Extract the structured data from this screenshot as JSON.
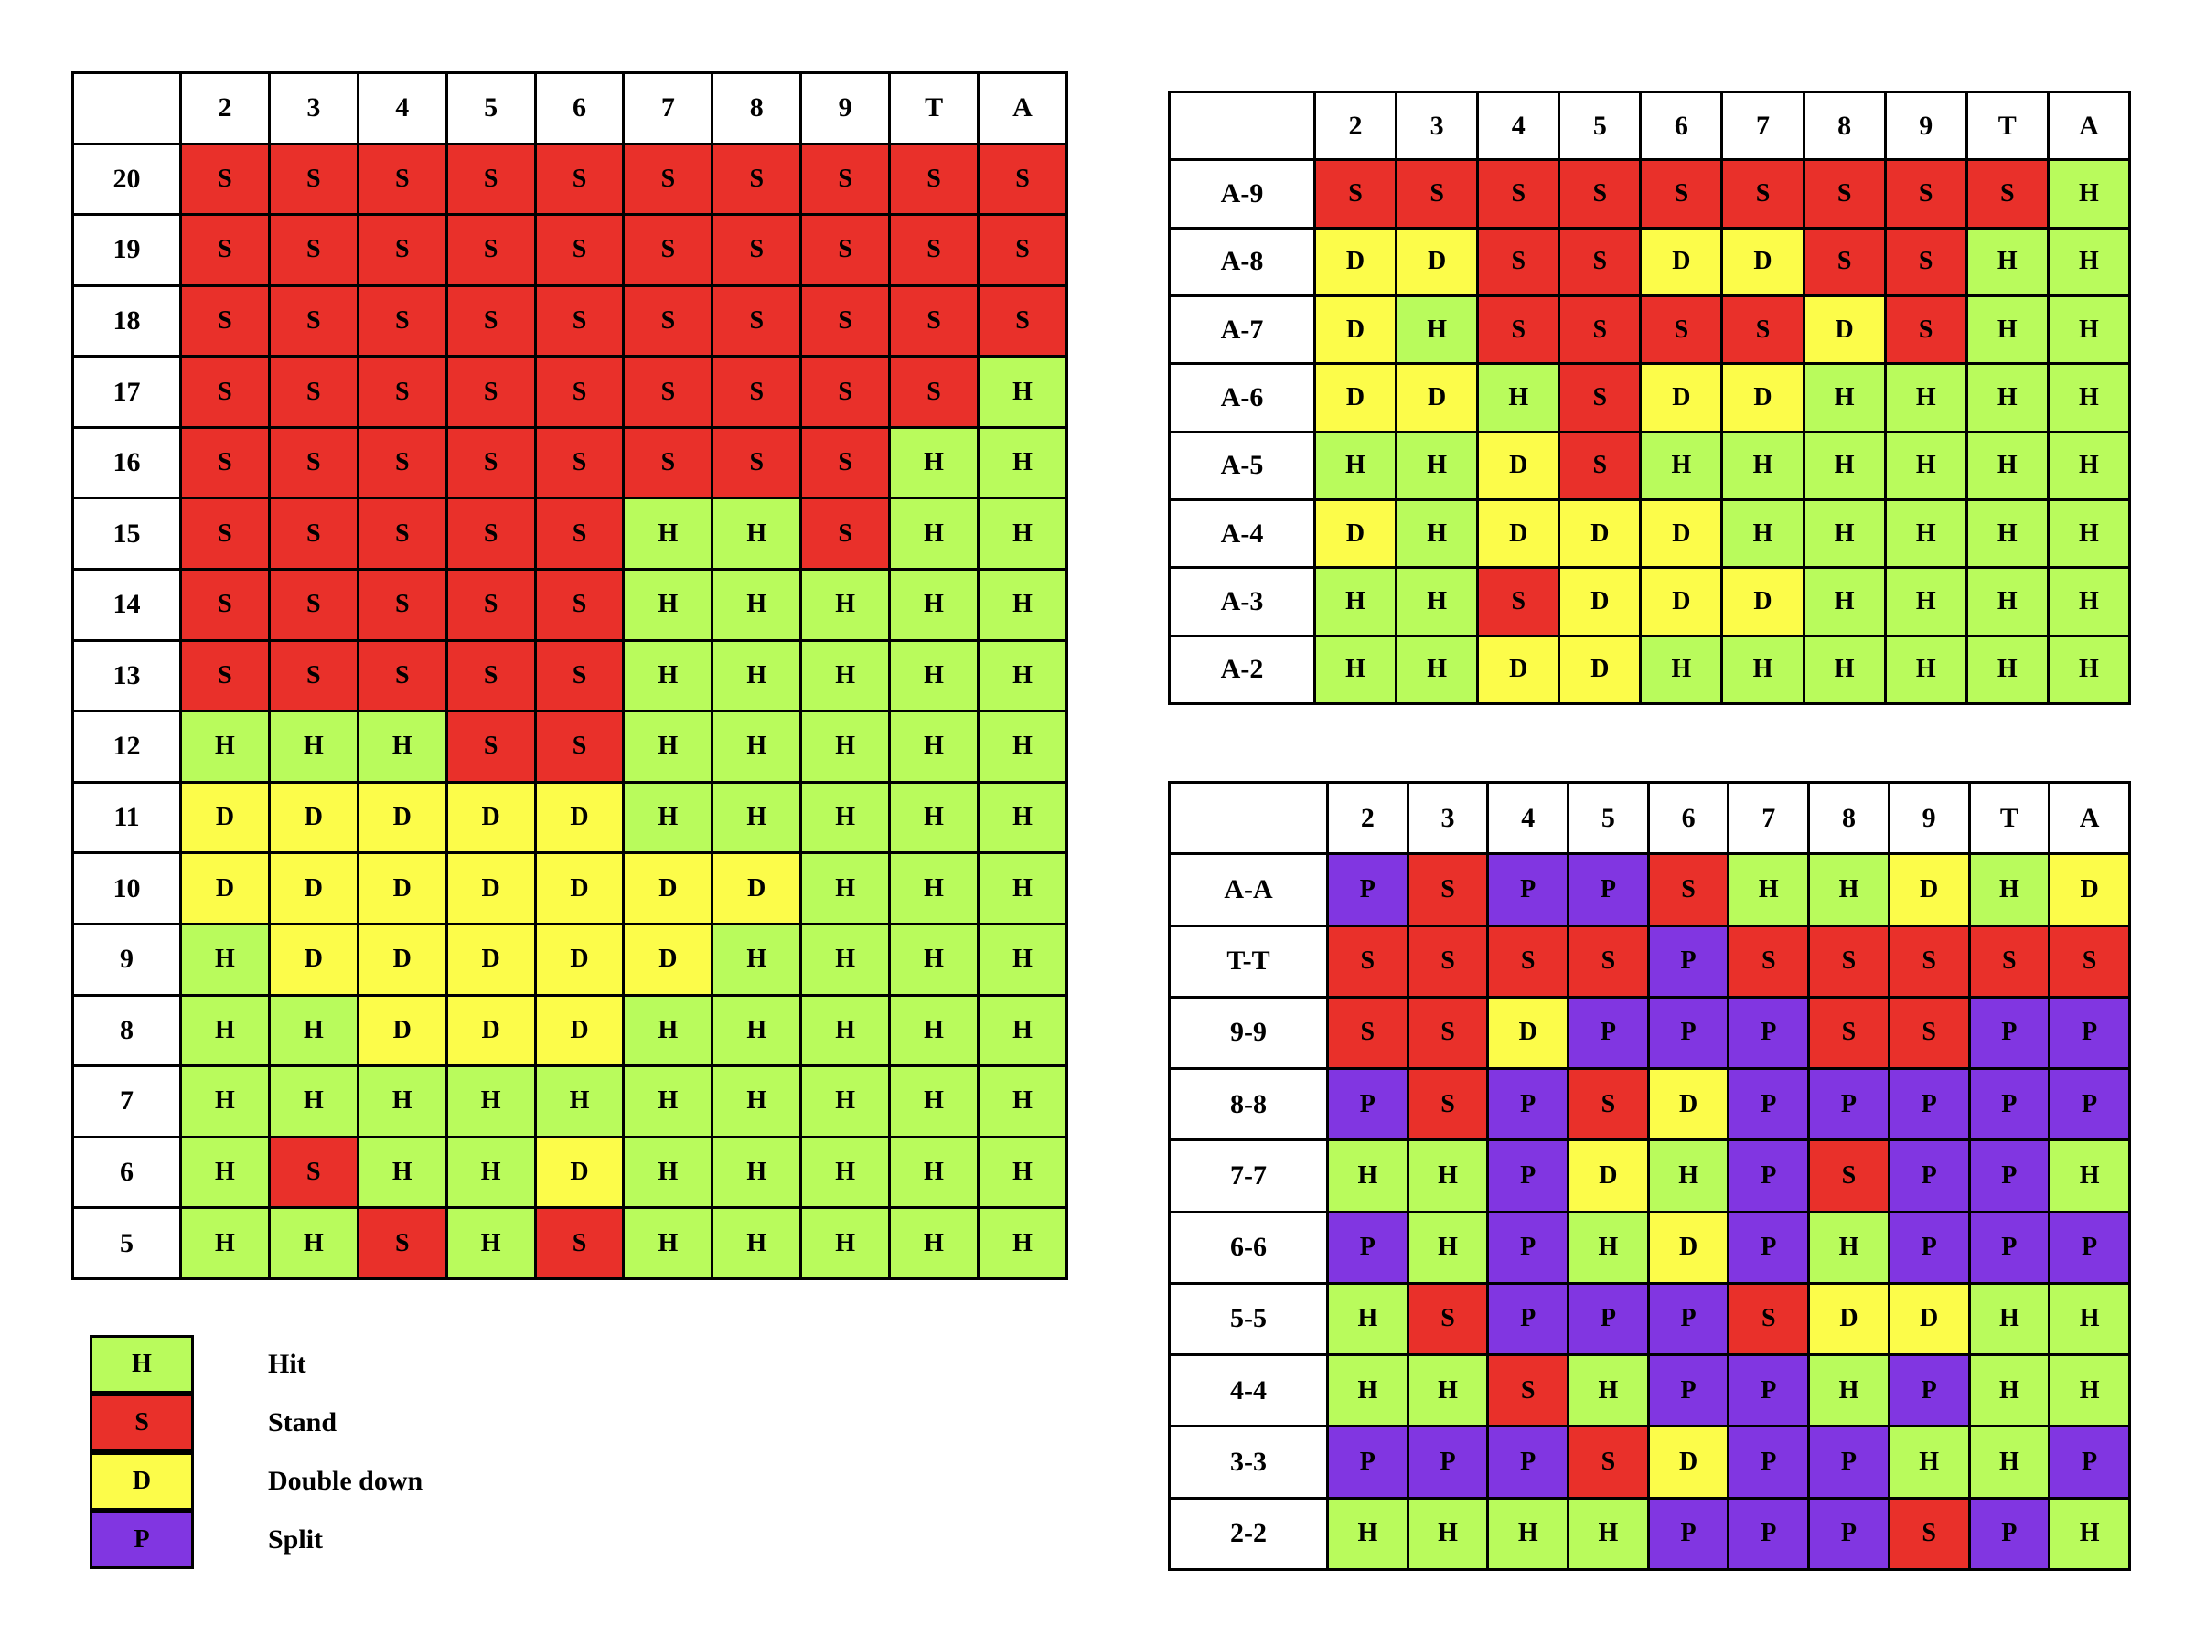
{
  "colors": {
    "H": "#b9fb5c",
    "S": "#e9302a",
    "D": "#fcfc4a",
    "P": "#8136e1"
  },
  "hard_table": {
    "columns": [
      "2",
      "3",
      "4",
      "5",
      "6",
      "7",
      "8",
      "9",
      "T",
      "A"
    ],
    "rows": [
      {
        "label": "20",
        "cells": [
          "S",
          "S",
          "S",
          "S",
          "S",
          "S",
          "S",
          "S",
          "S",
          "S"
        ]
      },
      {
        "label": "19",
        "cells": [
          "S",
          "S",
          "S",
          "S",
          "S",
          "S",
          "S",
          "S",
          "S",
          "S"
        ]
      },
      {
        "label": "18",
        "cells": [
          "S",
          "S",
          "S",
          "S",
          "S",
          "S",
          "S",
          "S",
          "S",
          "S"
        ]
      },
      {
        "label": "17",
        "cells": [
          "S",
          "S",
          "S",
          "S",
          "S",
          "S",
          "S",
          "S",
          "S",
          "H"
        ]
      },
      {
        "label": "16",
        "cells": [
          "S",
          "S",
          "S",
          "S",
          "S",
          "S",
          "S",
          "S",
          "H",
          "H"
        ]
      },
      {
        "label": "15",
        "cells": [
          "S",
          "S",
          "S",
          "S",
          "S",
          "H",
          "H",
          "S",
          "H",
          "H"
        ]
      },
      {
        "label": "14",
        "cells": [
          "S",
          "S",
          "S",
          "S",
          "S",
          "H",
          "H",
          "H",
          "H",
          "H"
        ]
      },
      {
        "label": "13",
        "cells": [
          "S",
          "S",
          "S",
          "S",
          "S",
          "H",
          "H",
          "H",
          "H",
          "H"
        ]
      },
      {
        "label": "12",
        "cells": [
          "H",
          "H",
          "H",
          "S",
          "S",
          "H",
          "H",
          "H",
          "H",
          "H"
        ]
      },
      {
        "label": "11",
        "cells": [
          "D",
          "D",
          "D",
          "D",
          "D",
          "H",
          "H",
          "H",
          "H",
          "H"
        ]
      },
      {
        "label": "10",
        "cells": [
          "D",
          "D",
          "D",
          "D",
          "D",
          "D",
          "D",
          "H",
          "H",
          "H"
        ]
      },
      {
        "label": "9",
        "cells": [
          "H",
          "D",
          "D",
          "D",
          "D",
          "D",
          "H",
          "H",
          "H",
          "H"
        ]
      },
      {
        "label": "8",
        "cells": [
          "H",
          "H",
          "D",
          "D",
          "D",
          "H",
          "H",
          "H",
          "H",
          "H"
        ]
      },
      {
        "label": "7",
        "cells": [
          "H",
          "H",
          "H",
          "H",
          "H",
          "H",
          "H",
          "H",
          "H",
          "H"
        ]
      },
      {
        "label": "6",
        "cells": [
          "H",
          "S",
          "H",
          "H",
          "D",
          "H",
          "H",
          "H",
          "H",
          "H"
        ]
      },
      {
        "label": "5",
        "cells": [
          "H",
          "H",
          "S",
          "H",
          "S",
          "H",
          "H",
          "H",
          "H",
          "H"
        ]
      }
    ]
  },
  "soft_table": {
    "columns": [
      "2",
      "3",
      "4",
      "5",
      "6",
      "7",
      "8",
      "9",
      "T",
      "A"
    ],
    "rows": [
      {
        "label": "A-9",
        "cells": [
          "S",
          "S",
          "S",
          "S",
          "S",
          "S",
          "S",
          "S",
          "S",
          "H"
        ]
      },
      {
        "label": "A-8",
        "cells": [
          "D",
          "D",
          "S",
          "S",
          "D",
          "D",
          "S",
          "S",
          "H",
          "H"
        ]
      },
      {
        "label": "A-7",
        "cells": [
          "D",
          "H",
          "S",
          "S",
          "S",
          "S",
          "D",
          "S",
          "H",
          "H"
        ]
      },
      {
        "label": "A-6",
        "cells": [
          "D",
          "D",
          "H",
          "S",
          "D",
          "D",
          "H",
          "H",
          "H",
          "H"
        ]
      },
      {
        "label": "A-5",
        "cells": [
          "H",
          "H",
          "D",
          "S",
          "H",
          "H",
          "H",
          "H",
          "H",
          "H"
        ]
      },
      {
        "label": "A-4",
        "cells": [
          "D",
          "H",
          "D",
          "D",
          "D",
          "H",
          "H",
          "H",
          "H",
          "H"
        ]
      },
      {
        "label": "A-3",
        "cells": [
          "H",
          "H",
          "S",
          "D",
          "D",
          "D",
          "H",
          "H",
          "H",
          "H"
        ]
      },
      {
        "label": "A-2",
        "cells": [
          "H",
          "H",
          "D",
          "D",
          "H",
          "H",
          "H",
          "H",
          "H",
          "H"
        ]
      }
    ]
  },
  "pairs_table": {
    "columns": [
      "2",
      "3",
      "4",
      "5",
      "6",
      "7",
      "8",
      "9",
      "T",
      "A"
    ],
    "rows": [
      {
        "label": "A-A",
        "cells": [
          "P",
          "S",
          "P",
          "P",
          "S",
          "H",
          "H",
          "D",
          "H",
          "D"
        ]
      },
      {
        "label": "T-T",
        "cells": [
          "S",
          "S",
          "S",
          "S",
          "P",
          "S",
          "S",
          "S",
          "S",
          "S"
        ]
      },
      {
        "label": "9-9",
        "cells": [
          "S",
          "S",
          "D",
          "P",
          "P",
          "P",
          "S",
          "S",
          "P",
          "P"
        ]
      },
      {
        "label": "8-8",
        "cells": [
          "P",
          "S",
          "P",
          "S",
          "D",
          "P",
          "P",
          "P",
          "P",
          "P"
        ]
      },
      {
        "label": "7-7",
        "cells": [
          "H",
          "H",
          "P",
          "D",
          "H",
          "P",
          "S",
          "P",
          "P",
          "H"
        ]
      },
      {
        "label": "6-6",
        "cells": [
          "P",
          "H",
          "P",
          "H",
          "D",
          "P",
          "H",
          "P",
          "P",
          "P"
        ]
      },
      {
        "label": "5-5",
        "cells": [
          "H",
          "S",
          "P",
          "P",
          "P",
          "S",
          "D",
          "D",
          "H",
          "H"
        ]
      },
      {
        "label": "4-4",
        "cells": [
          "H",
          "H",
          "S",
          "H",
          "P",
          "P",
          "H",
          "P",
          "H",
          "H"
        ]
      },
      {
        "label": "3-3",
        "cells": [
          "P",
          "P",
          "P",
          "S",
          "D",
          "P",
          "P",
          "H",
          "H",
          "P"
        ]
      },
      {
        "label": "2-2",
        "cells": [
          "H",
          "H",
          "H",
          "H",
          "P",
          "P",
          "P",
          "S",
          "P",
          "H"
        ]
      }
    ]
  },
  "legend": [
    {
      "code": "H",
      "label": "Hit"
    },
    {
      "code": "S",
      "label": "Stand"
    },
    {
      "code": "D",
      "label": "Double down"
    },
    {
      "code": "P",
      "label": "Split"
    }
  ]
}
